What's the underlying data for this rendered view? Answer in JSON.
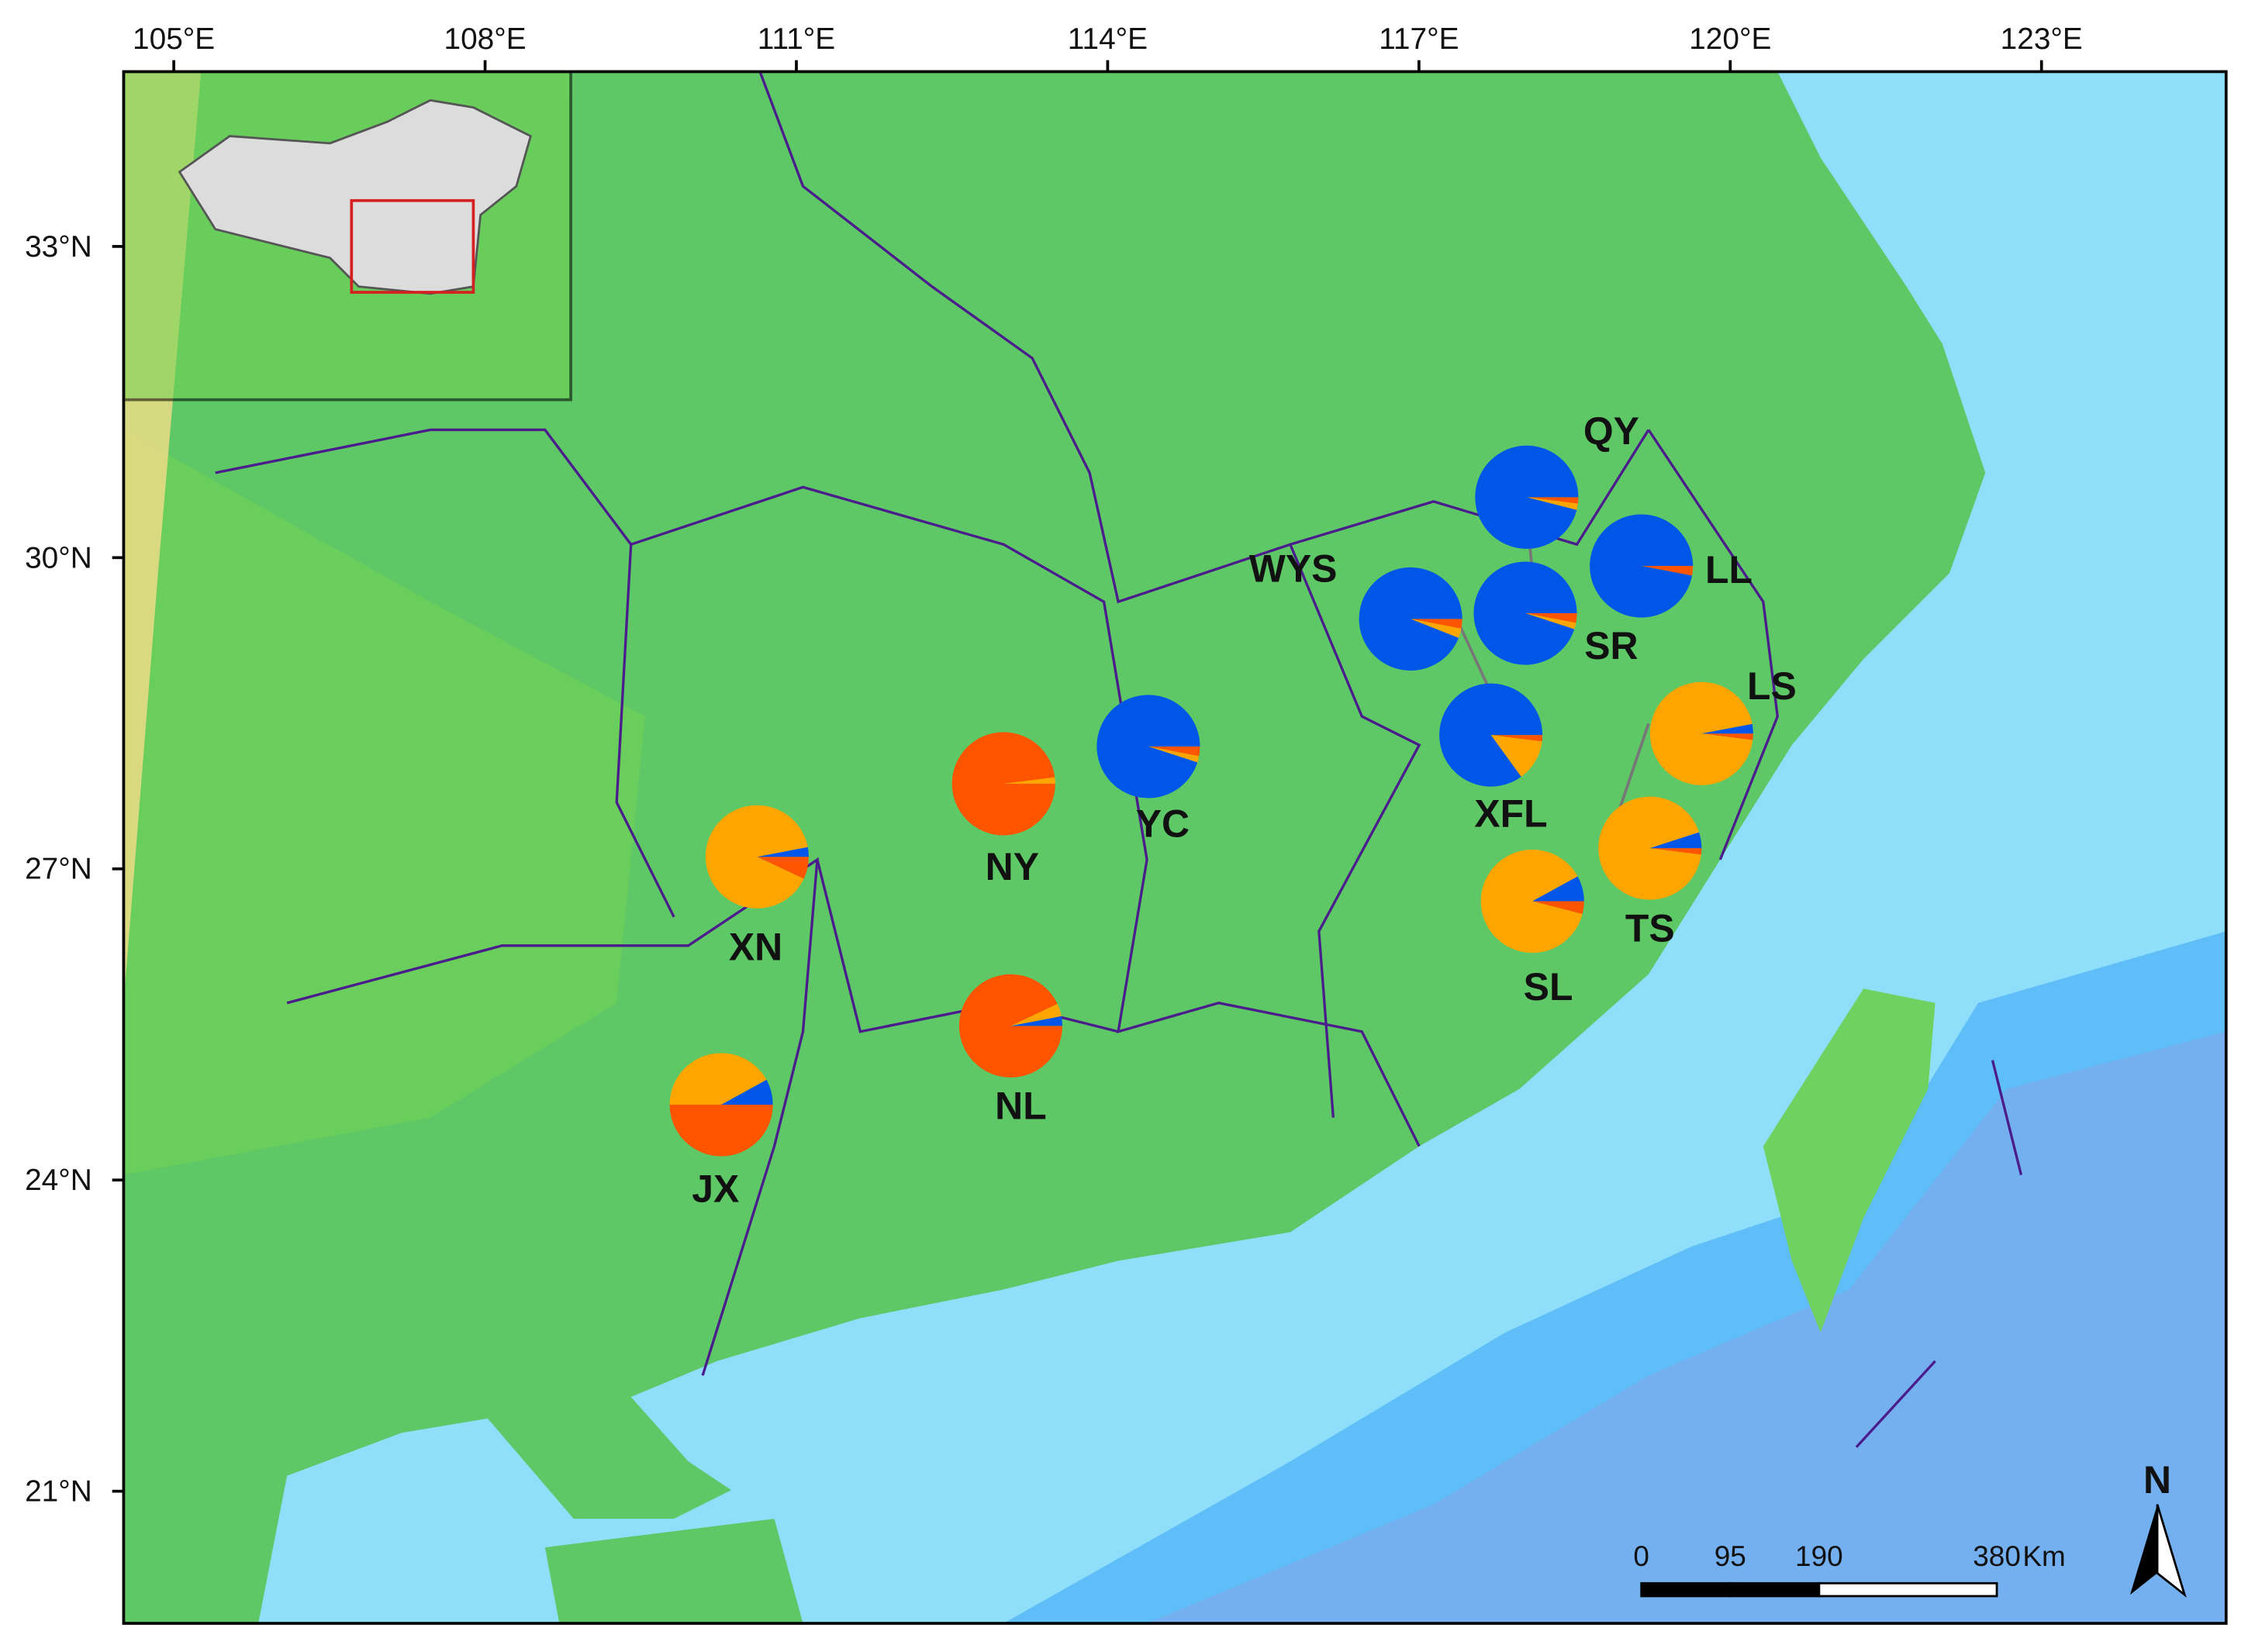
{
  "map": {
    "lon_ticks": [
      {
        "value": 105,
        "label": "105°E"
      },
      {
        "value": 108,
        "label": "108°E"
      },
      {
        "value": 111,
        "label": "111°E"
      },
      {
        "value": 114,
        "label": "114°E"
      },
      {
        "value": 117,
        "label": "117°E"
      },
      {
        "value": 120,
        "label": "120°E"
      },
      {
        "value": 123,
        "label": "123°E"
      }
    ],
    "lat_ticks": [
      {
        "value": 33,
        "label": "33°N"
      },
      {
        "value": 30,
        "label": "30°N"
      },
      {
        "value": 27,
        "label": "27°N"
      },
      {
        "value": 24,
        "label": "24°N"
      },
      {
        "value": 21,
        "label": "21°N"
      }
    ],
    "segment_colors": [
      "#ff5500",
      "#ffa500",
      "#0057e7"
    ],
    "populations": [
      {
        "label": "QY",
        "values": [
          2,
          2,
          96
        ]
      },
      {
        "label": "LL",
        "values": [
          3,
          0,
          97
        ]
      },
      {
        "label": "WYS",
        "values": [
          3,
          3,
          94
        ]
      },
      {
        "label": "SR",
        "values": [
          3,
          2,
          95
        ]
      },
      {
        "label": "XFL",
        "values": [
          2,
          13,
          85
        ]
      },
      {
        "label": "LS",
        "values": [
          2,
          95,
          3
        ]
      },
      {
        "label": "TS",
        "values": [
          2,
          93,
          5
        ]
      },
      {
        "label": "SL",
        "values": [
          4,
          88,
          8
        ]
      },
      {
        "label": "YC",
        "values": [
          3,
          2,
          95
        ]
      },
      {
        "label": "NY",
        "values": [
          98,
          2,
          0
        ]
      },
      {
        "label": "NL",
        "values": [
          93,
          4,
          3
        ]
      },
      {
        "label": "XN",
        "values": [
          7,
          90,
          3
        ]
      },
      {
        "label": "JX",
        "values": [
          50,
          42,
          8
        ]
      }
    ],
    "scale_bar": {
      "ticks": [
        0,
        95,
        190,
        380
      ],
      "unit": "Km"
    },
    "north": "N"
  }
}
